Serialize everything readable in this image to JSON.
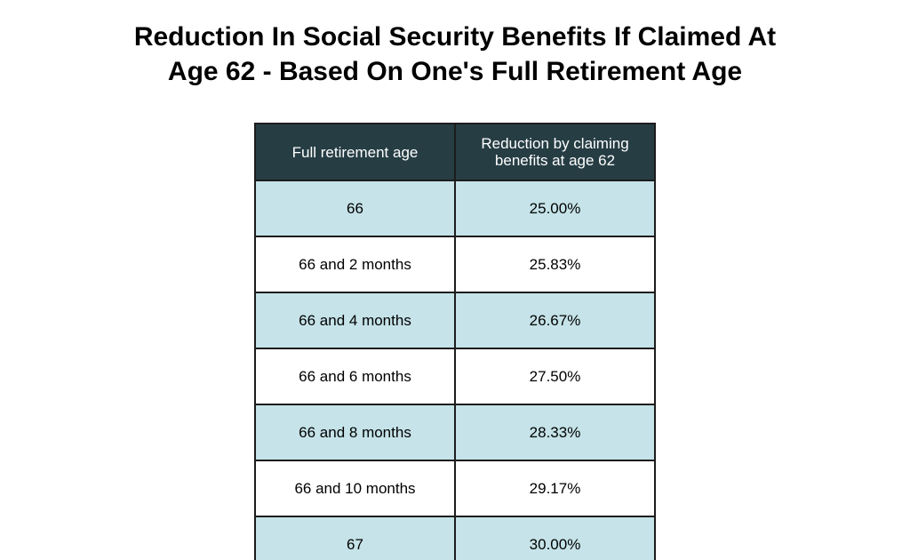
{
  "chart_data": {
    "type": "table",
    "title": "Reduction In Social Security Benefits If Claimed At Age 62 - Based On One's Full Retirement Age",
    "columns": [
      "Full retirement age",
      "Reduction by claiming benefits at age 62"
    ],
    "rows": [
      [
        "66",
        "25.00%"
      ],
      [
        "66 and 2 months",
        "25.83%"
      ],
      [
        "66 and 4 months",
        "26.67%"
      ],
      [
        "66 and 6 months",
        "27.50%"
      ],
      [
        "66 and 8 months",
        "28.33%"
      ],
      [
        "66 and 10 months",
        "29.17%"
      ],
      [
        "67",
        "30.00%"
      ]
    ]
  },
  "title_lines": [
    "Reduction In Social Security Benefits If Claimed At",
    "Age 62 - Based On One's Full Retirement Age"
  ],
  "colors": {
    "header_bg": "#263d44",
    "header_text": "#ffffff",
    "row_shaded": "#c5e3e8",
    "row_plain": "#ffffff",
    "border": "#1c1c1c"
  }
}
